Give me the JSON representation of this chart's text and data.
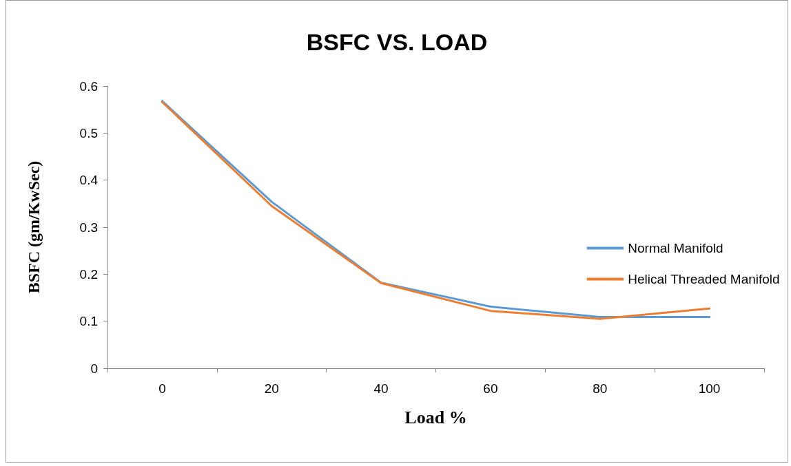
{
  "chart_data": {
    "type": "line",
    "title": "BSFC VS. LOAD",
    "xlabel": "Load %",
    "ylabel": "BSFC (gm/KwSec)",
    "categories": [
      "0",
      "20",
      "40",
      "60",
      "80",
      "100"
    ],
    "series": [
      {
        "name": "Normal Manifold",
        "color": "#5b9bd5",
        "values": [
          0.568,
          0.354,
          0.182,
          0.131,
          0.109,
          0.109
        ]
      },
      {
        "name": "Helical Threaded Manifold",
        "color": "#ed7d31",
        "values": [
          0.566,
          0.345,
          0.181,
          0.122,
          0.105,
          0.127
        ]
      }
    ],
    "ylim": [
      0,
      0.6
    ],
    "yticks": [
      0,
      0.1,
      0.2,
      0.3,
      0.4,
      0.5,
      0.6
    ],
    "grid": false,
    "legend": "right",
    "marker": "none",
    "line_style": "solid"
  }
}
